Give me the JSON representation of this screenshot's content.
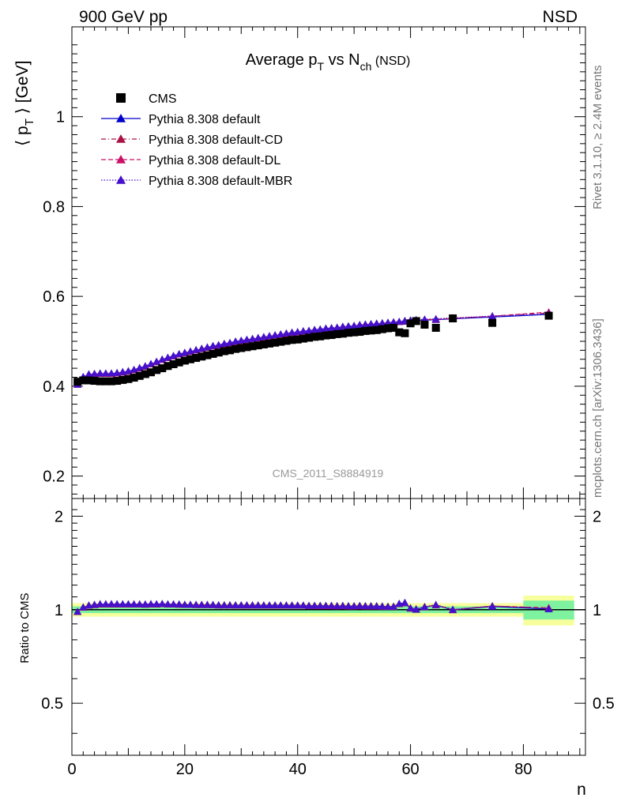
{
  "header": {
    "left": "900 GeV pp",
    "right": "NSD"
  },
  "side_text": {
    "rivet": "Rivet 3.1.10, ≥ 2.4M events",
    "mcplots": "mcplots.cern.ch [arXiv:1306.3436]"
  },
  "chart_data": [
    {
      "type": "scatter",
      "title": {
        "main": "Average p",
        "sub1": "T",
        "mid": " vs N",
        "sub2": "ch",
        "tail": " (NSD)"
      },
      "ylabel": {
        "pre": "⟨ p",
        "sub": "T",
        "post": " ⟩ [GeV]"
      },
      "xlabel": "n",
      "watermark": "CMS_2011_S8884919",
      "xlim": [
        0,
        91
      ],
      "ylim": [
        0.15,
        1.2
      ],
      "grid": false,
      "legend_position": "top-left",
      "x_ticks": [
        "0",
        "20",
        "40",
        "60",
        "80"
      ],
      "y_ticks": [
        "0.2",
        "0.4",
        "0.6",
        "0.8",
        "1"
      ],
      "series": [
        {
          "name": "CMS",
          "marker": "square",
          "color": "#000000",
          "x": [
            1,
            2,
            3,
            4,
            5,
            6,
            7,
            8,
            9,
            10,
            11,
            12,
            13,
            14,
            15,
            16,
            17,
            18,
            19,
            20,
            21,
            22,
            23,
            24,
            25,
            26,
            27,
            28,
            29,
            30,
            31,
            32,
            33,
            34,
            35,
            36,
            37,
            38,
            39,
            40,
            41,
            42,
            43,
            44,
            45,
            46,
            47,
            48,
            49,
            50,
            51,
            52,
            53,
            54,
            55,
            56,
            57,
            58,
            59,
            60,
            61,
            62.5,
            64.5,
            67.5,
            74.5,
            84.5
          ],
          "y": [
            0.41,
            0.413,
            0.413,
            0.412,
            0.411,
            0.411,
            0.411,
            0.412,
            0.414,
            0.416,
            0.419,
            0.423,
            0.427,
            0.431,
            0.436,
            0.44,
            0.445,
            0.449,
            0.453,
            0.457,
            0.46,
            0.463,
            0.466,
            0.469,
            0.472,
            0.475,
            0.478,
            0.48,
            0.483,
            0.485,
            0.487,
            0.489,
            0.491,
            0.493,
            0.495,
            0.497,
            0.499,
            0.501,
            0.503,
            0.504,
            0.506,
            0.508,
            0.51,
            0.511,
            0.513,
            0.514,
            0.516,
            0.517,
            0.519,
            0.52,
            0.521,
            0.523,
            0.524,
            0.525,
            0.527,
            0.529,
            0.53,
            0.52,
            0.518,
            0.54,
            0.545,
            0.537,
            0.53,
            0.551,
            0.541,
            0.557
          ]
        },
        {
          "name": "Pythia 8.308 default",
          "marker": "triangle",
          "color": "#0000cc",
          "line": "solid",
          "x": [
            1,
            2,
            3,
            4,
            5,
            6,
            7,
            8,
            9,
            10,
            11,
            12,
            13,
            14,
            15,
            16,
            17,
            18,
            19,
            20,
            21,
            22,
            23,
            24,
            25,
            26,
            27,
            28,
            29,
            30,
            31,
            32,
            33,
            34,
            35,
            36,
            37,
            38,
            39,
            40,
            41,
            42,
            43,
            44,
            45,
            46,
            47,
            48,
            49,
            50,
            51,
            52,
            53,
            54,
            55,
            56,
            57,
            58,
            59,
            60,
            61,
            62.5,
            64.5,
            67.5,
            74.5,
            84.5
          ],
          "y": [
            0.404,
            0.42,
            0.426,
            0.427,
            0.428,
            0.428,
            0.428,
            0.429,
            0.431,
            0.433,
            0.436,
            0.44,
            0.444,
            0.449,
            0.454,
            0.459,
            0.463,
            0.467,
            0.471,
            0.474,
            0.477,
            0.48,
            0.483,
            0.486,
            0.489,
            0.491,
            0.494,
            0.496,
            0.499,
            0.501,
            0.503,
            0.505,
            0.507,
            0.509,
            0.511,
            0.513,
            0.515,
            0.517,
            0.519,
            0.52,
            0.522,
            0.523,
            0.525,
            0.526,
            0.528,
            0.529,
            0.53,
            0.532,
            0.533,
            0.534,
            0.536,
            0.537,
            0.538,
            0.539,
            0.54,
            0.541,
            0.542,
            0.543,
            0.544,
            0.545,
            0.546,
            0.547,
            0.548,
            0.55,
            0.554,
            0.56
          ]
        },
        {
          "name": "Pythia 8.308 default-CD",
          "marker": "triangle",
          "color": "#aa1144",
          "line": "dashdot",
          "x": [
            1,
            2,
            3,
            4,
            5,
            6,
            7,
            8,
            9,
            10,
            11,
            12,
            13,
            14,
            15,
            16,
            17,
            18,
            19,
            20,
            21,
            22,
            23,
            24,
            25,
            26,
            27,
            28,
            29,
            30,
            31,
            32,
            33,
            34,
            35,
            36,
            37,
            38,
            39,
            40,
            41,
            42,
            43,
            44,
            45,
            46,
            47,
            48,
            49,
            50,
            51,
            52,
            53,
            54,
            55,
            56,
            57,
            58,
            59,
            60,
            61,
            62.5,
            64.5,
            67.5,
            74.5,
            84.5
          ],
          "y": [
            0.404,
            0.42,
            0.426,
            0.427,
            0.428,
            0.428,
            0.428,
            0.429,
            0.431,
            0.433,
            0.436,
            0.44,
            0.444,
            0.449,
            0.454,
            0.459,
            0.463,
            0.467,
            0.471,
            0.474,
            0.477,
            0.48,
            0.483,
            0.486,
            0.489,
            0.491,
            0.494,
            0.496,
            0.499,
            0.501,
            0.503,
            0.505,
            0.507,
            0.509,
            0.511,
            0.513,
            0.515,
            0.517,
            0.519,
            0.52,
            0.522,
            0.523,
            0.525,
            0.526,
            0.528,
            0.529,
            0.53,
            0.532,
            0.533,
            0.534,
            0.536,
            0.537,
            0.538,
            0.539,
            0.54,
            0.541,
            0.542,
            0.543,
            0.545,
            0.546,
            0.547,
            0.548,
            0.549,
            0.551,
            0.556,
            0.563
          ]
        },
        {
          "name": "Pythia 8.308 default-DL",
          "marker": "triangle",
          "color": "#cc1166",
          "line": "dashed",
          "x": [
            1,
            2,
            3,
            4,
            5,
            6,
            7,
            8,
            9,
            10,
            11,
            12,
            13,
            14,
            15,
            16,
            17,
            18,
            19,
            20,
            21,
            22,
            23,
            24,
            25,
            26,
            27,
            28,
            29,
            30,
            31,
            32,
            33,
            34,
            35,
            36,
            37,
            38,
            39,
            40,
            41,
            42,
            43,
            44,
            45,
            46,
            47,
            48,
            49,
            50,
            51,
            52,
            53,
            54,
            55,
            56,
            57,
            58,
            59,
            60,
            61,
            62.5,
            64.5,
            67.5,
            74.5,
            84.5
          ],
          "y": [
            0.404,
            0.42,
            0.426,
            0.427,
            0.428,
            0.428,
            0.428,
            0.429,
            0.431,
            0.433,
            0.436,
            0.44,
            0.444,
            0.449,
            0.454,
            0.459,
            0.463,
            0.467,
            0.471,
            0.474,
            0.477,
            0.48,
            0.483,
            0.486,
            0.489,
            0.491,
            0.494,
            0.496,
            0.499,
            0.501,
            0.503,
            0.505,
            0.507,
            0.509,
            0.511,
            0.513,
            0.515,
            0.517,
            0.519,
            0.52,
            0.522,
            0.523,
            0.525,
            0.526,
            0.528,
            0.529,
            0.53,
            0.532,
            0.533,
            0.534,
            0.536,
            0.537,
            0.538,
            0.539,
            0.54,
            0.541,
            0.542,
            0.543,
            0.545,
            0.546,
            0.547,
            0.548,
            0.549,
            0.551,
            0.556,
            0.565
          ]
        },
        {
          "name": "Pythia 8.308 default-MBR",
          "marker": "triangle",
          "color": "#4411cc",
          "line": "dotted",
          "x": [
            1,
            2,
            3,
            4,
            5,
            6,
            7,
            8,
            9,
            10,
            11,
            12,
            13,
            14,
            15,
            16,
            17,
            18,
            19,
            20,
            21,
            22,
            23,
            24,
            25,
            26,
            27,
            28,
            29,
            30,
            31,
            32,
            33,
            34,
            35,
            36,
            37,
            38,
            39,
            40,
            41,
            42,
            43,
            44,
            45,
            46,
            47,
            48,
            49,
            50,
            51,
            52,
            53,
            54,
            55,
            56,
            57,
            58,
            59,
            60,
            61,
            62.5,
            64.5,
            67.5,
            74.5,
            84.5
          ],
          "y": [
            0.404,
            0.421,
            0.427,
            0.428,
            0.429,
            0.429,
            0.429,
            0.43,
            0.432,
            0.434,
            0.437,
            0.441,
            0.445,
            0.45,
            0.455,
            0.46,
            0.464,
            0.468,
            0.472,
            0.475,
            0.478,
            0.481,
            0.484,
            0.487,
            0.49,
            0.492,
            0.495,
            0.497,
            0.5,
            0.502,
            0.504,
            0.506,
            0.508,
            0.51,
            0.512,
            0.514,
            0.516,
            0.518,
            0.52,
            0.521,
            0.523,
            0.524,
            0.526,
            0.527,
            0.529,
            0.53,
            0.531,
            0.533,
            0.534,
            0.535,
            0.537,
            0.538,
            0.539,
            0.54,
            0.541,
            0.542,
            0.543,
            0.544,
            0.546,
            0.547,
            0.548,
            0.549,
            0.55,
            0.552,
            0.556,
            0.561
          ]
        }
      ]
    },
    {
      "type": "scatter",
      "ylabel": "Ratio to CMS",
      "xlim": [
        0,
        91
      ],
      "ylim": [
        0.34,
        2.28
      ],
      "y_scale": "log",
      "y_ticks_left": [
        "0.5",
        "1",
        "2"
      ],
      "y_ticks_right": [
        "0.5",
        "1",
        "2"
      ],
      "reference_line": 1,
      "band_inner": {
        "color": "#7ff29f",
        "relative_error": 0.04
      },
      "band_outer": {
        "color": "#f7ff9c",
        "relative_error": 0.07
      },
      "band_segments": [
        {
          "x_from": 0,
          "x_to": 80,
          "inner": 0.025,
          "outer": 0.05
        },
        {
          "x_from": 80,
          "x_to": 89,
          "inner": 0.07,
          "outer": 0.11
        }
      ],
      "ratio_series": [
        {
          "name": "Pythia 8.308 default",
          "color": "#0000cc"
        },
        {
          "name": "Pythia 8.308 default-CD",
          "color": "#aa1144"
        },
        {
          "name": "Pythia 8.308 default-DL",
          "color": "#cc1166"
        },
        {
          "name": "Pythia 8.308 default-MBR",
          "color": "#4411cc"
        }
      ]
    }
  ]
}
